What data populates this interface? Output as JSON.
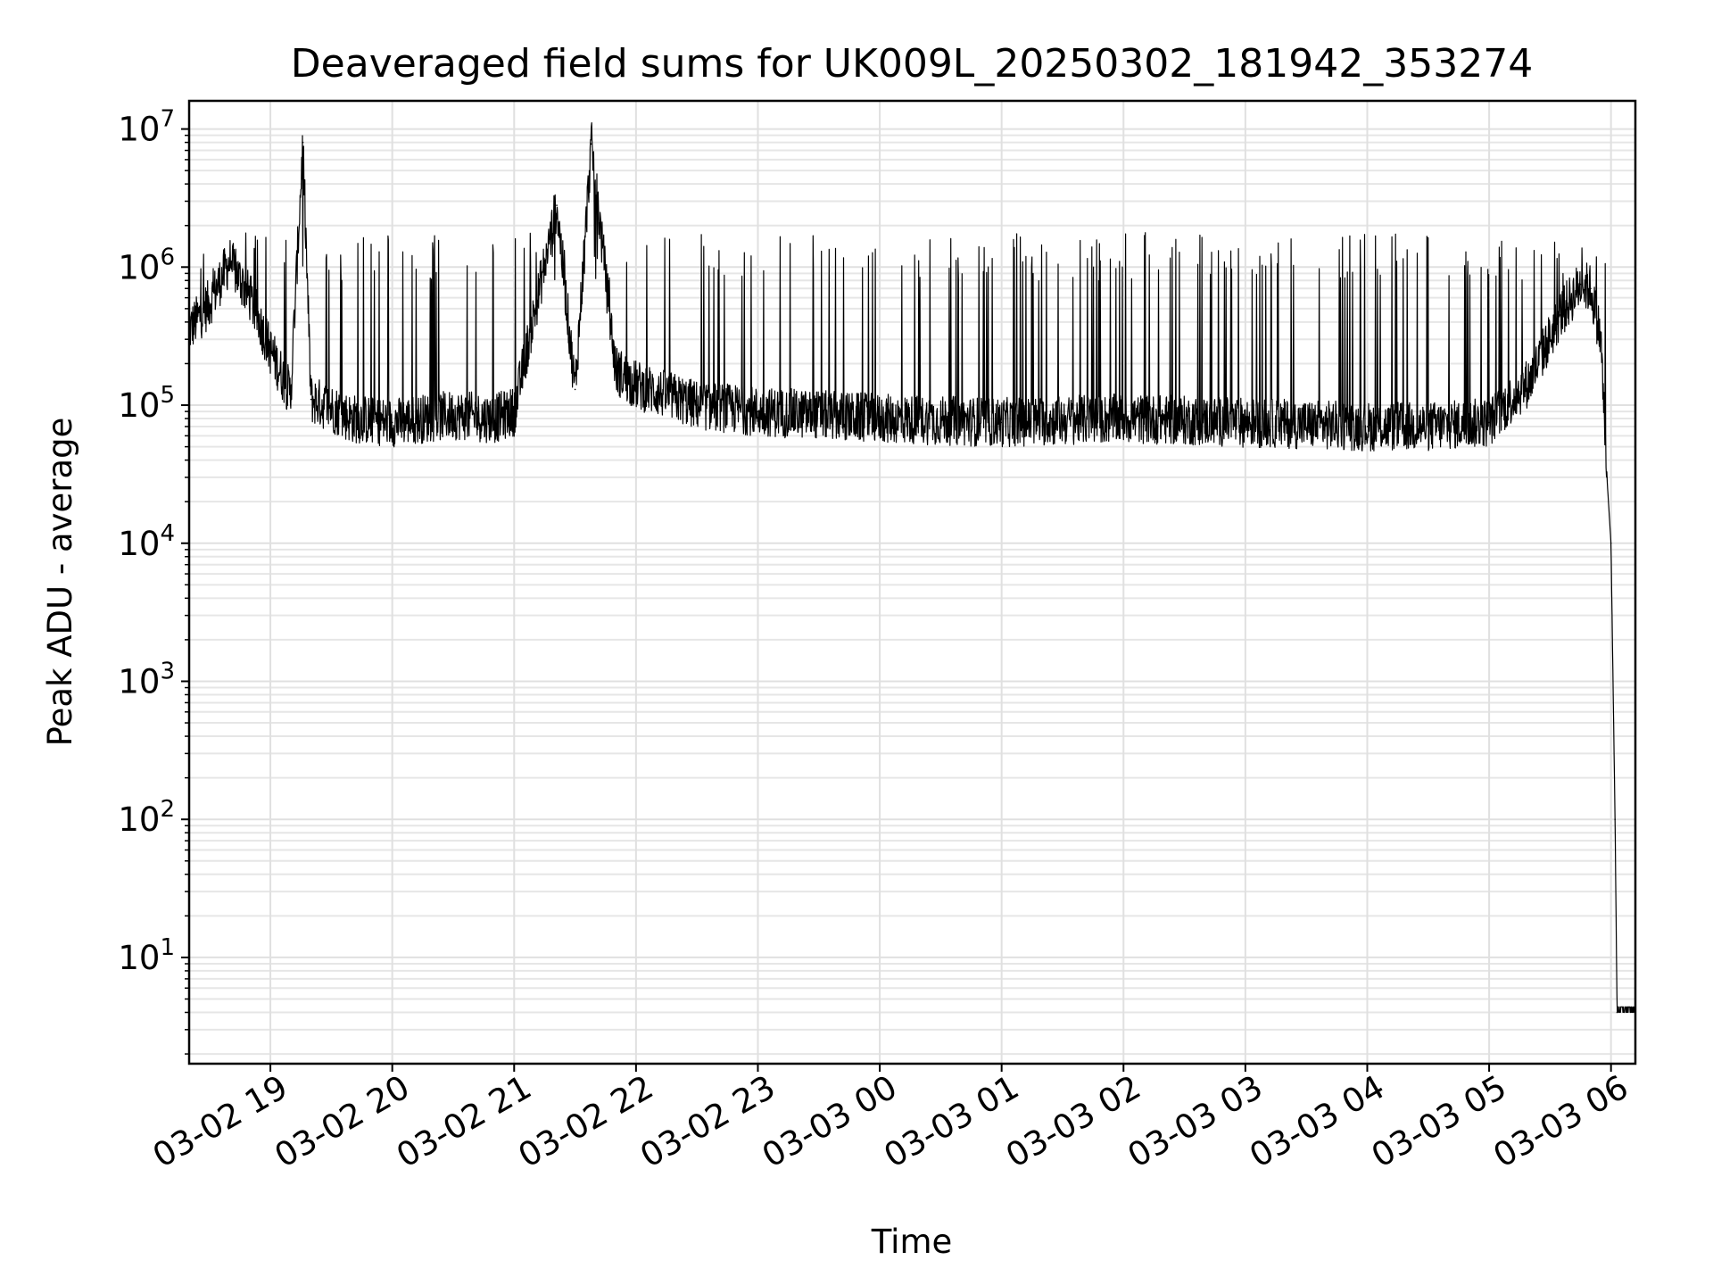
{
  "chart_data": {
    "type": "line",
    "title": "Deaveraged field sums for UK009L_20250302_181942_353274",
    "xlabel": "Time",
    "ylabel": "Peak ADU - average",
    "yscale": "log",
    "xlim": [
      "2025-03-02 18:20",
      "2025-03-03 06:12"
    ],
    "ylim": [
      1.7,
      16000000
    ],
    "grid": true,
    "x_ticks": [
      "03-02 19",
      "03-02 20",
      "03-02 21",
      "03-02 22",
      "03-02 23",
      "03-03 00",
      "03-03 01",
      "03-03 02",
      "03-03 03",
      "03-03 04",
      "03-03 05",
      "03-03 06"
    ],
    "y_ticks": [
      {
        "base": "10",
        "exp": "1",
        "value": 10
      },
      {
        "base": "10",
        "exp": "2",
        "value": 100
      },
      {
        "base": "10",
        "exp": "3",
        "value": 1000
      },
      {
        "base": "10",
        "exp": "4",
        "value": 10000
      },
      {
        "base": "10",
        "exp": "5",
        "value": 100000
      },
      {
        "base": "10",
        "exp": "6",
        "value": 1000000
      },
      {
        "base": "10",
        "exp": "7",
        "value": 10000000
      }
    ],
    "series": [
      {
        "color": "#000000",
        "x": [
          "2025-03-02 18:20",
          "2025-03-02 18:30",
          "2025-03-02 18:40",
          "2025-03-02 18:50",
          "2025-03-02 19:00",
          "2025-03-02 19:10",
          "2025-03-02 19:16",
          "2025-03-02 19:20",
          "2025-03-02 19:30",
          "2025-03-02 19:40",
          "2025-03-02 20:00",
          "2025-03-02 20:30",
          "2025-03-02 20:50",
          "2025-03-02 21:00",
          "2025-03-02 21:21",
          "2025-03-02 21:30",
          "2025-03-02 21:38",
          "2025-03-02 21:50",
          "2025-03-02 22:00",
          "2025-03-02 22:30",
          "2025-03-02 23:00",
          "2025-03-03 00:00",
          "2025-03-03 01:00",
          "2025-03-03 02:00",
          "2025-03-03 03:00",
          "2025-03-03 04:00",
          "2025-03-03 04:30",
          "2025-03-03 05:00",
          "2025-03-03 05:20",
          "2025-03-03 05:35",
          "2025-03-03 05:45",
          "2025-03-03 05:50",
          "2025-03-03 05:55",
          "2025-03-03 05:58",
          "2025-03-03 06:00",
          "2025-03-03 06:02",
          "2025-03-03 06:03",
          "2025-03-03 06:12"
        ],
        "values": [
          350000,
          550000,
          1100000,
          600000,
          250000,
          120000,
          8000000,
          110000,
          95000,
          80000,
          75000,
          85000,
          80000,
          90000,
          2800000,
          130000,
          7800000,
          180000,
          140000,
          100000,
          90000,
          80000,
          75000,
          80000,
          75000,
          70000,
          70000,
          75000,
          150000,
          450000,
          750000,
          700000,
          300000,
          30000,
          10000,
          100,
          4,
          4
        ]
      }
    ]
  }
}
